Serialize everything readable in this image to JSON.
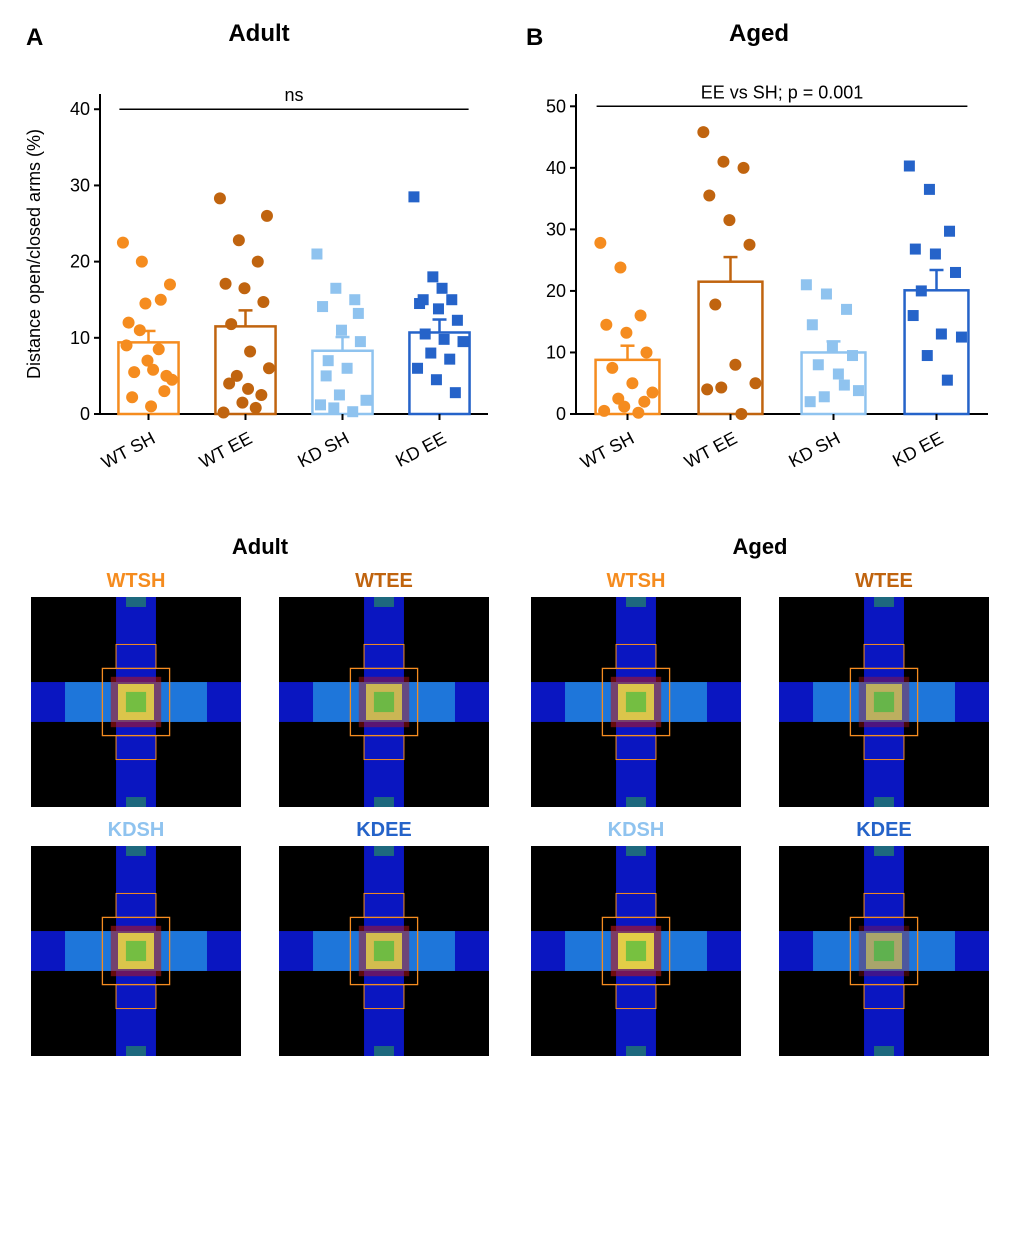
{
  "panelA": {
    "label": "A",
    "title": "Adult",
    "annotation": "ns",
    "ylabel": "Distance open/closed arms (%)",
    "ylim": [
      0,
      42
    ],
    "yticks": [
      0,
      10,
      20,
      30,
      40
    ],
    "categories": [
      "WT SH",
      "WT EE",
      "KD SH",
      "KD EE"
    ],
    "bars": [
      {
        "height": 9.4,
        "err": 1.5,
        "color": "#f58c1f",
        "marker": "circle",
        "points": [
          22.5,
          20,
          15,
          12,
          7,
          5,
          5.5,
          5.8,
          4.5,
          11,
          8.5,
          9,
          14.5,
          3,
          2.2,
          1,
          17
        ]
      },
      {
        "height": 11.5,
        "err": 2.1,
        "color": "#c0640f",
        "marker": "circle",
        "points": [
          28.3,
          22.8,
          20,
          17.1,
          16.5,
          14.7,
          11.8,
          8.2,
          6,
          5,
          0.8,
          0.2,
          1.5,
          2.5,
          4,
          3.3,
          26
        ]
      },
      {
        "height": 8.3,
        "err": 1.8,
        "color": "#8fc3ef",
        "marker": "square",
        "points": [
          21,
          16.5,
          15,
          14.1,
          11,
          9.5,
          7,
          6,
          1.8,
          0.8,
          0.3,
          1.2,
          2.5,
          13.2,
          5
        ]
      },
      {
        "height": 10.7,
        "err": 1.7,
        "color": "#2563c9",
        "marker": "square",
        "points": [
          28.5,
          18,
          15,
          14.5,
          13.8,
          12.3,
          10.5,
          9.8,
          9.5,
          8,
          7.2,
          6,
          4.5,
          2.8,
          15,
          16.5
        ]
      }
    ],
    "bar_width": 0.62,
    "axis_color": "#000000",
    "tick_fontsize": 18,
    "label_fontsize": 18
  },
  "panelB": {
    "label": "B",
    "title": "Aged",
    "annotation": "EE vs SH; p = 0.001",
    "ylabel": "",
    "ylim": [
      0,
      52
    ],
    "yticks": [
      0,
      10,
      20,
      30,
      40,
      50
    ],
    "categories": [
      "WT SH",
      "WT EE",
      "KD SH",
      "KD EE"
    ],
    "bars": [
      {
        "height": 8.8,
        "err": 2.3,
        "color": "#f58c1f",
        "marker": "circle",
        "points": [
          27.8,
          23.8,
          16,
          14.5,
          13.2,
          10,
          7.5,
          5,
          3.5,
          2.5,
          0.2,
          0.5,
          1.2,
          2
        ]
      },
      {
        "height": 21.5,
        "err": 4.0,
        "color": "#c0640f",
        "marker": "circle",
        "points": [
          45.8,
          41,
          40,
          35.5,
          31.5,
          27.5,
          17.8,
          8,
          5,
          4.3,
          0,
          4
        ]
      },
      {
        "height": 10.0,
        "err": 1.8,
        "color": "#8fc3ef",
        "marker": "square",
        "points": [
          21,
          19.5,
          17,
          14.5,
          11,
          9.5,
          8,
          6.5,
          3.8,
          2.8,
          4.7,
          2
        ]
      },
      {
        "height": 20.1,
        "err": 3.3,
        "color": "#2563c9",
        "marker": "square",
        "points": [
          40.3,
          36.5,
          29.7,
          26.8,
          26,
          23,
          20,
          13,
          12.5,
          9.5,
          5.5,
          16
        ]
      }
    ],
    "bar_width": 0.62,
    "axis_color": "#000000",
    "tick_fontsize": 18,
    "label_fontsize": 18
  },
  "heatmaps": {
    "left_title": "Adult",
    "right_title": "Aged",
    "groups": [
      {
        "label": "WTSH",
        "color": "#f58c1f",
        "side": "left",
        "hot": 0.55
      },
      {
        "label": "WTEE",
        "color": "#c0640f",
        "side": "left",
        "hot": 0.45
      },
      {
        "label": "WTSH",
        "color": "#f58c1f",
        "side": "right",
        "hot": 0.55
      },
      {
        "label": "WTEE",
        "color": "#c0640f",
        "side": "right",
        "hot": 0.38
      },
      {
        "label": "KDSH",
        "color": "#8fc3ef",
        "side": "left",
        "hot": 0.55
      },
      {
        "label": "KDEE",
        "color": "#2563c9",
        "side": "left",
        "hot": 0.5
      },
      {
        "label": "KDSH",
        "color": "#8fc3ef",
        "side": "right",
        "hot": 0.6
      },
      {
        "label": "KDEE",
        "color": "#2563c9",
        "side": "right",
        "hot": 0.3
      }
    ],
    "maze_bg": "#000000",
    "arm_blue": "#0a16c1",
    "arm_cyan": "#27a0e4",
    "center_outline": "#f58c1f",
    "center_red": "#bc1515",
    "center_yellow": "#f5e642",
    "center_green": "#2fb93c",
    "box_size": 210
  }
}
